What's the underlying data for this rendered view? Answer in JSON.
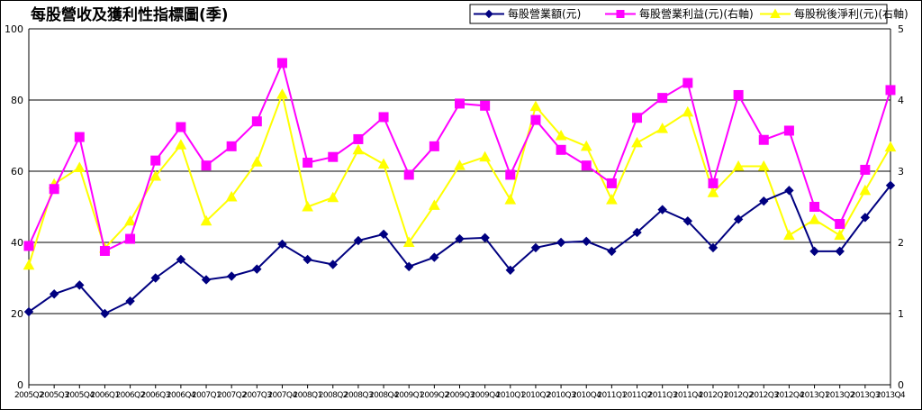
{
  "chart_data": {
    "type": "line",
    "title": "每股營收及獲利性指標圖(季)",
    "categories": [
      "2005Q2",
      "2005Q3",
      "2005Q4",
      "2006Q1",
      "2006Q2",
      "2006Q3",
      "2006Q4",
      "2007Q1",
      "2007Q2",
      "2007Q3",
      "2007Q4",
      "2008Q1",
      "2008Q2",
      "2008Q3",
      "2008Q4",
      "2009Q1",
      "2009Q2",
      "2009Q3",
      "2009Q4",
      "2010Q1",
      "2010Q2",
      "2010Q3",
      "2010Q4",
      "2011Q1",
      "2011Q2",
      "2011Q3",
      "2011Q4",
      "2012Q1",
      "2012Q2",
      "2012Q3",
      "2012Q4",
      "2013Q1",
      "2013Q2",
      "2013Q3",
      "2013Q4"
    ],
    "x_tick_labels": [
      "2005Q2",
      "2005Q3",
      "2005Q4",
      "2006Q1",
      "2006Q2",
      "2006Q3",
      "2006Q4",
      "2007Q1",
      "2007Q2",
      "2007Q3",
      "2007Q4",
      "2008Q1",
      "2008Q2",
      "2008Q3",
      "2008Q4",
      "2009Q1",
      "2009Q2",
      "2009Q3",
      "2009Q4",
      "2010Q1",
      "2010Q2",
      "2010Q3",
      "2010Q4",
      "2011Q1",
      "2011Q2",
      "2011Q3",
      "2011Q4",
      "2012Q1",
      "2012Q2",
      "2012Q3",
      "2012Q4",
      "2013Q1",
      "2013Q2",
      "2013Q3",
      "2013Q4"
    ],
    "y_left": {
      "ylim": [
        0,
        100
      ],
      "ticks": [
        "0",
        "20",
        "40",
        "60",
        "80",
        "100"
      ]
    },
    "y_right": {
      "ylim": [
        0,
        5
      ],
      "ticks": [
        "0",
        "1",
        "2",
        "3",
        "4",
        "5"
      ]
    },
    "grid": true,
    "legend_position": "top-right",
    "series": [
      {
        "name": "每股營業額(元)",
        "axis": "left",
        "color": "#000080",
        "marker": "diamond",
        "values": [
          20.5,
          25.5,
          28,
          20,
          23.5,
          30,
          35.2,
          29.5,
          30.5,
          32.5,
          39.5,
          35.2,
          33.8,
          40.5,
          42.3,
          33.2,
          35.8,
          41,
          41.3,
          32.2,
          38.5,
          40,
          40.3,
          37.5,
          42.8,
          49.2,
          46,
          38.5,
          46.5,
          51.6,
          54.6,
          37.5,
          37.5,
          47,
          56
        ]
      },
      {
        "name": "每股營業利益(元)(右軸)",
        "axis": "right",
        "color": "#ff00ff",
        "marker": "square",
        "values": [
          1.95,
          2.75,
          3.48,
          1.88,
          2.05,
          3.15,
          3.62,
          3.08,
          3.35,
          3.7,
          4.52,
          3.12,
          3.2,
          3.45,
          3.76,
          2.95,
          3.35,
          3.95,
          3.92,
          2.95,
          3.72,
          3.3,
          3.08,
          2.83,
          3.75,
          4.03,
          4.24,
          2.83,
          4.07,
          3.44,
          3.57,
          2.5,
          2.26,
          3.02,
          4.14
        ]
      },
      {
        "name": "每股稅後淨利(元)(右軸)",
        "axis": "right",
        "color": "#ffff00",
        "marker": "triangle",
        "values": [
          1.68,
          2.82,
          3.05,
          1.92,
          2.3,
          2.93,
          3.37,
          2.3,
          2.64,
          3.13,
          4.08,
          2.5,
          2.63,
          3.3,
          3.1,
          2,
          2.52,
          3.08,
          3.2,
          2.6,
          3.91,
          3.5,
          3.35,
          2.6,
          3.4,
          3.6,
          3.83,
          2.7,
          3.07,
          3.07,
          2.1,
          2.32,
          2.1,
          2.73,
          3.34
        ]
      }
    ]
  }
}
